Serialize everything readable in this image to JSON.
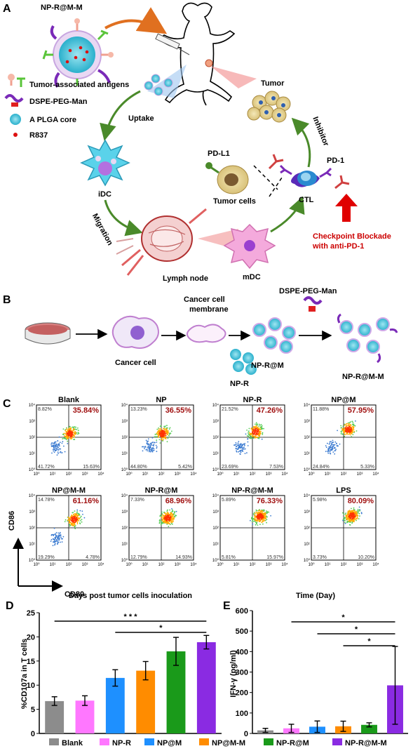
{
  "panel_a": {
    "letter": "A",
    "np_label": "NP-R@M-M",
    "legend": [
      "Tumor-associated antigens",
      "DSPE-PEG-Man",
      "A PLGA core",
      "R837"
    ],
    "uptake": "Uptake",
    "idc": "iDC",
    "migration": "Migration",
    "lymph_node": "Lymph node",
    "mdc": "mDC",
    "tumor": "Tumor",
    "inhibitor": "Inhibitor",
    "pdl1": "PD-L1",
    "tumor_cells": "Tumor cells",
    "ctl": "CTL",
    "pd1": "PD-1",
    "checkpoint_line1": "Checkpoint Blockade",
    "checkpoint_line2": "with anti-PD-1",
    "colors": {
      "arrow_green": "#4a8a2a",
      "checkpoint_red": "#d40000",
      "core_cyan": "#3cc0d6",
      "peg_purple": "#7a2ab8"
    }
  },
  "panel_b": {
    "letter": "B",
    "cancer_cell_membrane_1": "Cancer cell",
    "cancer_cell_membrane_2": "membrane",
    "dspe": "DSPE-PEG-Man",
    "cancer_cell": "Cancer cell",
    "np_r": "NP-R",
    "np_rm": "NP-R@M",
    "np_rmm": "NP-R@M-M"
  },
  "panel_c": {
    "letter": "C",
    "ylabel": "CD86",
    "xlabel": "CD80",
    "plots": [
      {
        "title": "Blank",
        "q2": "35.84%",
        "q1": "8.82%",
        "q3": "41.72%",
        "q4": "15.63%"
      },
      {
        "title": "NP",
        "q2": "36.55%",
        "q1": "13.23%",
        "q3": "44.80%",
        "q4": "5.42%"
      },
      {
        "title": "NP-R",
        "q2": "47.26%",
        "q1": "21.52%",
        "q3": "23.69%",
        "q4": "7.53%"
      },
      {
        "title": "NP@M",
        "q2": "57.95%",
        "q1": "11.88%",
        "q3": "24.84%",
        "q4": "5.33%"
      },
      {
        "title": "NP@M-M",
        "q2": "61.16%",
        "q1": "14.78%",
        "q3": "19.29%",
        "q4": "4.78%"
      },
      {
        "title": "NP-R@M",
        "q2": "68.96%",
        "q1": "7.33%",
        "q3": "12.79%",
        "q4": "14.93%"
      },
      {
        "title": "NP-R@M-M",
        "q2": "76.33%",
        "q1": "5.89%",
        "q3": "5.81%",
        "q4": "15.97%"
      },
      {
        "title": "LPS",
        "q2": "80.09%",
        "q1": "5.98%",
        "q3": "3.73%",
        "q4": "10.20%"
      }
    ],
    "tick_labels": [
      "10⁰",
      "10¹",
      "10²",
      "10³",
      "10⁴"
    ]
  },
  "chart_data": [
    {
      "type": "bar",
      "panel": "D",
      "title": "Days post tumor cells inoculation",
      "ylabel": "%CD107a in T cells",
      "xlabel": "",
      "categories": [
        "Blank",
        "NP-R",
        "NP@M",
        "NP@M-M",
        "NP-R@M",
        "NP-R@M-M"
      ],
      "values": [
        6.7,
        6.8,
        11.5,
        13.0,
        17.0,
        18.9
      ],
      "errors": [
        0.9,
        1.0,
        1.7,
        1.9,
        2.9,
        1.4
      ],
      "ylim": [
        0,
        25
      ],
      "yticks": [
        0,
        5,
        10,
        15,
        20,
        25
      ],
      "significance": [
        "* * *",
        "*"
      ]
    },
    {
      "type": "bar",
      "panel": "E",
      "title": "Time (Day)",
      "ylabel": "IFN-γ (pg/ml)",
      "xlabel": "",
      "categories": [
        "Blank",
        "NP-R",
        "NP@M",
        "NP@M-M",
        "NP-R@M",
        "NP-R@M-M"
      ],
      "values": [
        15,
        25,
        33,
        35,
        42,
        235
      ],
      "errors": [
        10,
        20,
        28,
        25,
        10,
        190
      ],
      "ylim": [
        0,
        600
      ],
      "yticks": [
        0,
        100,
        200,
        300,
        400,
        500,
        600
      ],
      "significance": [
        "*",
        "*",
        "*"
      ]
    }
  ],
  "legend": {
    "items": [
      "Blank",
      "NP-R",
      "NP@M",
      "NP@M-M",
      "NP-R@M",
      "NP-R@M-M"
    ],
    "colors": [
      "#8c8c8c",
      "#ff77ff",
      "#1e90ff",
      "#ff8c00",
      "#1a9a1a",
      "#8a2be2"
    ]
  }
}
